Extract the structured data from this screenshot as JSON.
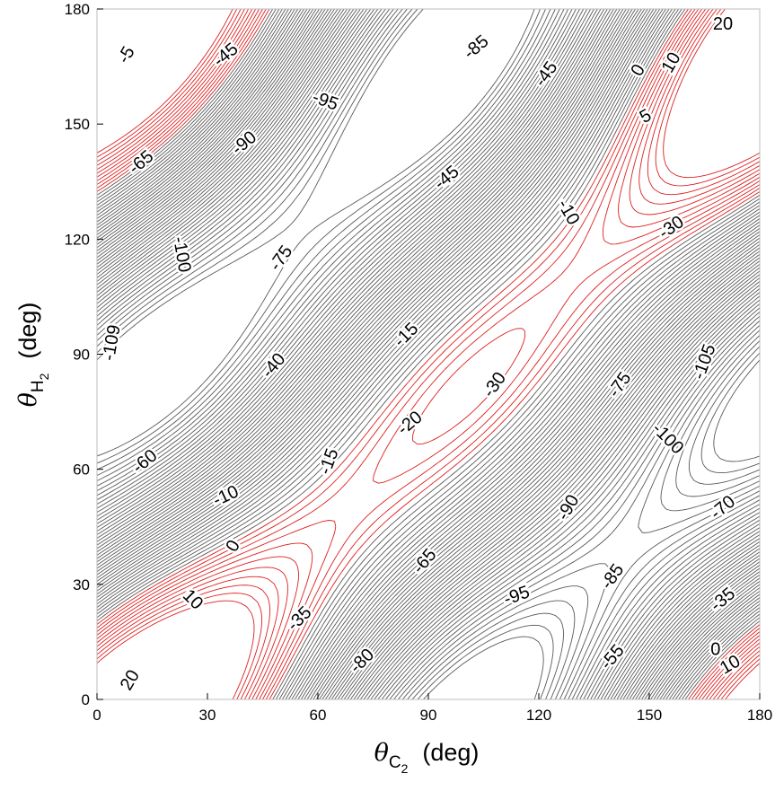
{
  "chart_data": {
    "type": "contour",
    "xlabel": {
      "symbol": "θ",
      "subscript": "C",
      "subsubscript": "2",
      "unit": "(deg)"
    },
    "ylabel": {
      "symbol": "θ",
      "subscript": "H",
      "subsubscript": "2",
      "unit": "(deg)"
    },
    "xlim": [
      0,
      180
    ],
    "ylim": [
      0,
      180
    ],
    "x_ticks": [
      0,
      30,
      60,
      90,
      120,
      150,
      180
    ],
    "y_ticks": [
      0,
      30,
      60,
      90,
      120,
      150,
      180
    ],
    "grid": false,
    "colors": {
      "negative_levels": "#595959",
      "positive_levels": "#dd1f1f",
      "frame": "#bdbdbd"
    },
    "contour_labels": [
      {
        "text": "-5",
        "x": 8,
        "y": 168,
        "angle": -60
      },
      {
        "text": "-45",
        "x": 35,
        "y": 168,
        "angle": -40
      },
      {
        "text": "-85",
        "x": 103,
        "y": 170,
        "angle": -40
      },
      {
        "text": "-45",
        "x": 122,
        "y": 163,
        "angle": -55
      },
      {
        "text": "0",
        "x": 147,
        "y": 164,
        "angle": -60
      },
      {
        "text": "10",
        "x": 156,
        "y": 166,
        "angle": -60
      },
      {
        "text": "20",
        "x": 170,
        "y": 176,
        "angle": 0
      },
      {
        "text": "-95",
        "x": 62,
        "y": 156,
        "angle": 20
      },
      {
        "text": "5",
        "x": 149,
        "y": 152,
        "angle": -30
      },
      {
        "text": "-90",
        "x": 40,
        "y": 145,
        "angle": -40
      },
      {
        "text": "-65",
        "x": 12,
        "y": 140,
        "angle": -40
      },
      {
        "text": "-45",
        "x": 95,
        "y": 136,
        "angle": -40
      },
      {
        "text": "-10",
        "x": 128,
        "y": 127,
        "angle": 60
      },
      {
        "text": "-30",
        "x": 156,
        "y": 123,
        "angle": -35
      },
      {
        "text": "-100",
        "x": 23,
        "y": 116,
        "angle": 80
      },
      {
        "text": "-75",
        "x": 50,
        "y": 115,
        "angle": -55
      },
      {
        "text": "-109",
        "x": 4,
        "y": 93,
        "angle": -80
      },
      {
        "text": "-15",
        "x": 84,
        "y": 95,
        "angle": -45
      },
      {
        "text": "-105",
        "x": 165,
        "y": 88,
        "angle": -70
      },
      {
        "text": "-40",
        "x": 48,
        "y": 87,
        "angle": -50
      },
      {
        "text": "-30",
        "x": 108,
        "y": 82,
        "angle": -55
      },
      {
        "text": "-75",
        "x": 142,
        "y": 82,
        "angle": -55
      },
      {
        "text": "-20",
        "x": 85,
        "y": 72,
        "angle": -40
      },
      {
        "text": "-100",
        "x": 155,
        "y": 68,
        "angle": 45
      },
      {
        "text": "-60",
        "x": 13,
        "y": 62,
        "angle": -40
      },
      {
        "text": "-15",
        "x": 63,
        "y": 62,
        "angle": -70
      },
      {
        "text": "-10",
        "x": 35,
        "y": 53,
        "angle": -25
      },
      {
        "text": "-90",
        "x": 128,
        "y": 50,
        "angle": -60
      },
      {
        "text": "-70",
        "x": 170,
        "y": 50,
        "angle": -40
      },
      {
        "text": "0",
        "x": 37,
        "y": 40,
        "angle": -60
      },
      {
        "text": "-65",
        "x": 89,
        "y": 36,
        "angle": -50
      },
      {
        "text": "-85",
        "x": 140,
        "y": 32,
        "angle": -55
      },
      {
        "text": "10",
        "x": 26,
        "y": 26,
        "angle": 45
      },
      {
        "text": "-95",
        "x": 114,
        "y": 27,
        "angle": -20
      },
      {
        "text": "-35",
        "x": 170,
        "y": 26,
        "angle": -40
      },
      {
        "text": "-35",
        "x": 55,
        "y": 21,
        "angle": -45
      },
      {
        "text": "0",
        "x": 168,
        "y": 13,
        "angle": 0
      },
      {
        "text": "10",
        "x": 172,
        "y": 9,
        "angle": -30
      },
      {
        "text": "-80",
        "x": 72,
        "y": 10,
        "angle": -45
      },
      {
        "text": "-55",
        "x": 140,
        "y": 11,
        "angle": -50
      },
      {
        "text": "20",
        "x": 9,
        "y": 5,
        "angle": -60
      }
    ]
  }
}
